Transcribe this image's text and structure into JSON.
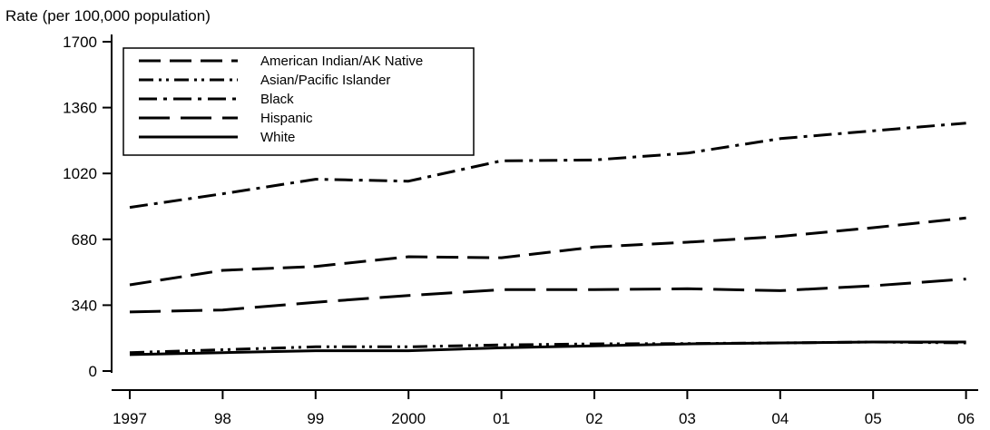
{
  "chart_data": {
    "type": "line",
    "ylabel": "Rate (per 100,000 population)",
    "xlabel": "",
    "x_ticks": [
      "1997",
      "98",
      "99",
      "2000",
      "01",
      "02",
      "03",
      "04",
      "05",
      "06"
    ],
    "y_ticks": [
      "0",
      "340",
      "680",
      "1020",
      "1360",
      "1700"
    ],
    "ylim": [
      0,
      1700
    ],
    "grid": false,
    "legend_position": "top-left",
    "series": [
      {
        "name": "American Indian/AK Native",
        "style": "dashed",
        "values": [
          445,
          520,
          540,
          590,
          585,
          640,
          665,
          695,
          740,
          790
        ]
      },
      {
        "name": "Asian/Pacific Islander",
        "style": "dash-dot-dot",
        "values": [
          95,
          110,
          125,
          125,
          135,
          140,
          142,
          145,
          150,
          145
        ]
      },
      {
        "name": "Black",
        "style": "dash-dot",
        "values": [
          845,
          915,
          990,
          980,
          1085,
          1090,
          1125,
          1200,
          1240,
          1280
        ]
      },
      {
        "name": "Hispanic",
        "style": "long-dash",
        "values": [
          305,
          315,
          355,
          390,
          420,
          420,
          425,
          415,
          440,
          475
        ]
      },
      {
        "name": "White",
        "style": "solid",
        "values": [
          85,
          95,
          105,
          105,
          120,
          130,
          140,
          145,
          150,
          150
        ]
      }
    ]
  }
}
